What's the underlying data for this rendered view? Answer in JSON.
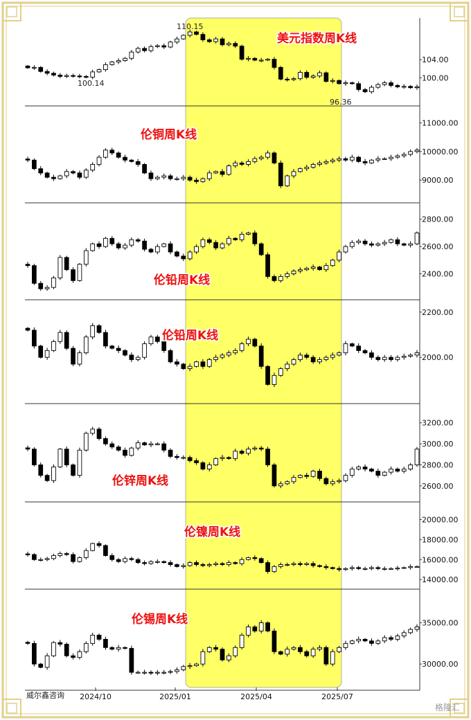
{
  "brand_label": "威尔鑫咨询",
  "watermark": "格隆汇",
  "colors": {
    "frame": "#e2cf8a",
    "highlight": "#ffff66",
    "title": "#ee1111",
    "candle_up": "#ffffff",
    "candle_down": "#000000"
  },
  "x_axis": {
    "ticks": [
      "2024/10",
      "2025/01",
      "2025/04",
      "2025/07"
    ]
  },
  "chart_data": [
    {
      "type": "candlestick",
      "title": "美元指数周K线",
      "y_ticks": [
        "104.00",
        "100.00"
      ],
      "annotations": [
        {
          "text": "110.15"
        },
        {
          "text": "100.14"
        },
        {
          "text": "96.36"
        }
      ],
      "closes": [
        102.2,
        102.3,
        101.4,
        101.0,
        100.6,
        100.3,
        100.5,
        100.4,
        100.3,
        100.14,
        101.3,
        101.8,
        102.9,
        103.5,
        103.8,
        104.3,
        105.7,
        106.5,
        106.0,
        106.9,
        107.1,
        106.8,
        107.9,
        108.6,
        109.4,
        110.15,
        109.6,
        108.4,
        108.0,
        108.6,
        107.3,
        107.6,
        107.0,
        104.1,
        104.3,
        103.9,
        103.9,
        104.1,
        102.3,
        99.7,
        99.6,
        99.8,
        101.2,
        100.1,
        100.4,
        101.1,
        99.2,
        99.4,
        98.7,
        98.9,
        98.7,
        97.4,
        96.9,
        97.9,
        98.5,
        98.9,
        98.3,
        98.0,
        98.1,
        97.8,
        98.0
      ],
      "highlight": {
        "start": "2025/01",
        "end": "2025/08"
      }
    },
    {
      "type": "candlestick",
      "title": "伦铜周K线",
      "y_ticks": [
        "11000.00",
        "10000.00",
        "9000.00"
      ],
      "closes": [
        9700,
        9400,
        9250,
        9100,
        9050,
        9150,
        9300,
        9250,
        9100,
        9350,
        9550,
        9800,
        10050,
        9950,
        9800,
        9700,
        9650,
        9550,
        9250,
        9050,
        9100,
        9150,
        9050,
        9050,
        9100,
        9000,
        8950,
        9050,
        9250,
        9300,
        9200,
        9500,
        9600,
        9550,
        9650,
        9750,
        9800,
        9950,
        9600,
        8800,
        9150,
        9300,
        9400,
        9450,
        9550,
        9600,
        9650,
        9700,
        9750,
        9700,
        9800,
        9650,
        9600,
        9700,
        9750,
        9750,
        9800,
        9850,
        9900,
        10000,
        10050
      ],
      "highlight": {
        "start": "2025/01",
        "end": "2025/08"
      }
    },
    {
      "type": "candlestick",
      "title": "伦铅周K线",
      "y_ticks": [
        "2800.00",
        "2600.00",
        "2400.00"
      ],
      "closes": [
        2460,
        2330,
        2290,
        2300,
        2370,
        2520,
        2430,
        2350,
        2470,
        2570,
        2620,
        2600,
        2660,
        2620,
        2590,
        2610,
        2650,
        2640,
        2580,
        2560,
        2600,
        2620,
        2560,
        2530,
        2510,
        2560,
        2600,
        2650,
        2630,
        2590,
        2620,
        2660,
        2650,
        2690,
        2700,
        2620,
        2540,
        2380,
        2350,
        2380,
        2400,
        2420,
        2430,
        2440,
        2450,
        2430,
        2460,
        2500,
        2560,
        2600,
        2630,
        2640,
        2620,
        2610,
        2620,
        2630,
        2650,
        2620,
        2610,
        2620,
        2700
      ],
      "highlight": {
        "start": "2025/01",
        "end": "2025/08"
      }
    },
    {
      "type": "candlestick",
      "title": "伦铅周K线",
      "y_ticks": [
        "2200.00",
        "2000.00"
      ],
      "closes": [
        2120,
        2050,
        2000,
        2030,
        2070,
        2110,
        2040,
        1970,
        2020,
        2090,
        2140,
        2110,
        2050,
        2040,
        2030,
        2010,
        1990,
        2000,
        2060,
        2090,
        2070,
        2030,
        1980,
        1970,
        1950,
        1960,
        1980,
        1960,
        1990,
        2000,
        2010,
        2020,
        2030,
        2060,
        2080,
        2050,
        1960,
        1880,
        1920,
        1950,
        1970,
        1990,
        2010,
        2000,
        1980,
        1990,
        2000,
        2010,
        2020,
        2060,
        2050,
        2030,
        2020,
        2000,
        1990,
        2000,
        1990,
        2000,
        2005,
        2010,
        2020
      ],
      "highlight": {
        "start": "2025/01",
        "end": "2025/08"
      }
    },
    {
      "type": "candlestick",
      "title": "伦锌周K线",
      "y_ticks": [
        "3200.00",
        "3000.00",
        "2800.00",
        "2600.00"
      ],
      "closes": [
        2950,
        2800,
        2700,
        2650,
        2780,
        2950,
        2800,
        2700,
        2940,
        3100,
        3140,
        3050,
        3000,
        2970,
        2940,
        2890,
        2960,
        3010,
        2990,
        3000,
        3000,
        2940,
        2880,
        2870,
        2870,
        2840,
        2820,
        2760,
        2800,
        2860,
        2870,
        2860,
        2930,
        2910,
        2950,
        2960,
        2950,
        2800,
        2600,
        2620,
        2640,
        2680,
        2700,
        2690,
        2740,
        2670,
        2620,
        2640,
        2650,
        2700,
        2760,
        2780,
        2760,
        2740,
        2700,
        2730,
        2760,
        2740,
        2760,
        2800,
        2950
      ],
      "highlight": {
        "start": "2025/01",
        "end": "2025/08"
      }
    },
    {
      "type": "candlestick",
      "title": "伦镍周K线",
      "y_ticks": [
        "20000.00",
        "18000.00",
        "16000.00",
        "14000.00"
      ],
      "closes": [
        16500,
        16000,
        16000,
        16100,
        16400,
        16600,
        16500,
        15800,
        16200,
        16900,
        17600,
        17400,
        16400,
        16000,
        15800,
        16100,
        16000,
        15700,
        15600,
        15800,
        15800,
        15700,
        15500,
        15300,
        15400,
        15700,
        15500,
        15400,
        15500,
        15600,
        15500,
        15700,
        15600,
        16000,
        16200,
        16100,
        15700,
        14800,
        15300,
        15500,
        15500,
        15600,
        15500,
        15600,
        15400,
        15300,
        15200,
        15100,
        15000,
        15100,
        15200,
        15100,
        15100,
        15200,
        15100,
        15100,
        15100,
        15150,
        15200,
        15300,
        15300
      ],
      "highlight": {
        "start": "2025/01",
        "end": "2025/08"
      }
    },
    {
      "type": "candlestick",
      "title": "伦锡周K线",
      "y_ticks": [
        "35000.00",
        "30000.00"
      ],
      "closes": [
        32500,
        30000,
        29600,
        31000,
        32600,
        32400,
        31000,
        30800,
        31500,
        32500,
        33500,
        33000,
        32000,
        31800,
        32000,
        31900,
        29000,
        29000,
        29000,
        28900,
        29000,
        29000,
        29100,
        29300,
        29700,
        29800,
        30000,
        31500,
        32000,
        31800,
        30500,
        31000,
        32000,
        33500,
        34500,
        34000,
        35000,
        34000,
        31500,
        31200,
        31800,
        32000,
        31500,
        31000,
        31800,
        32000,
        30000,
        31500,
        32000,
        32500,
        32800,
        33000,
        32800,
        32500,
        32800,
        33200,
        33000,
        33400,
        33800,
        34200,
        34500
      ],
      "highlight": {
        "start": "2025/01",
        "end": "2025/08"
      }
    }
  ]
}
